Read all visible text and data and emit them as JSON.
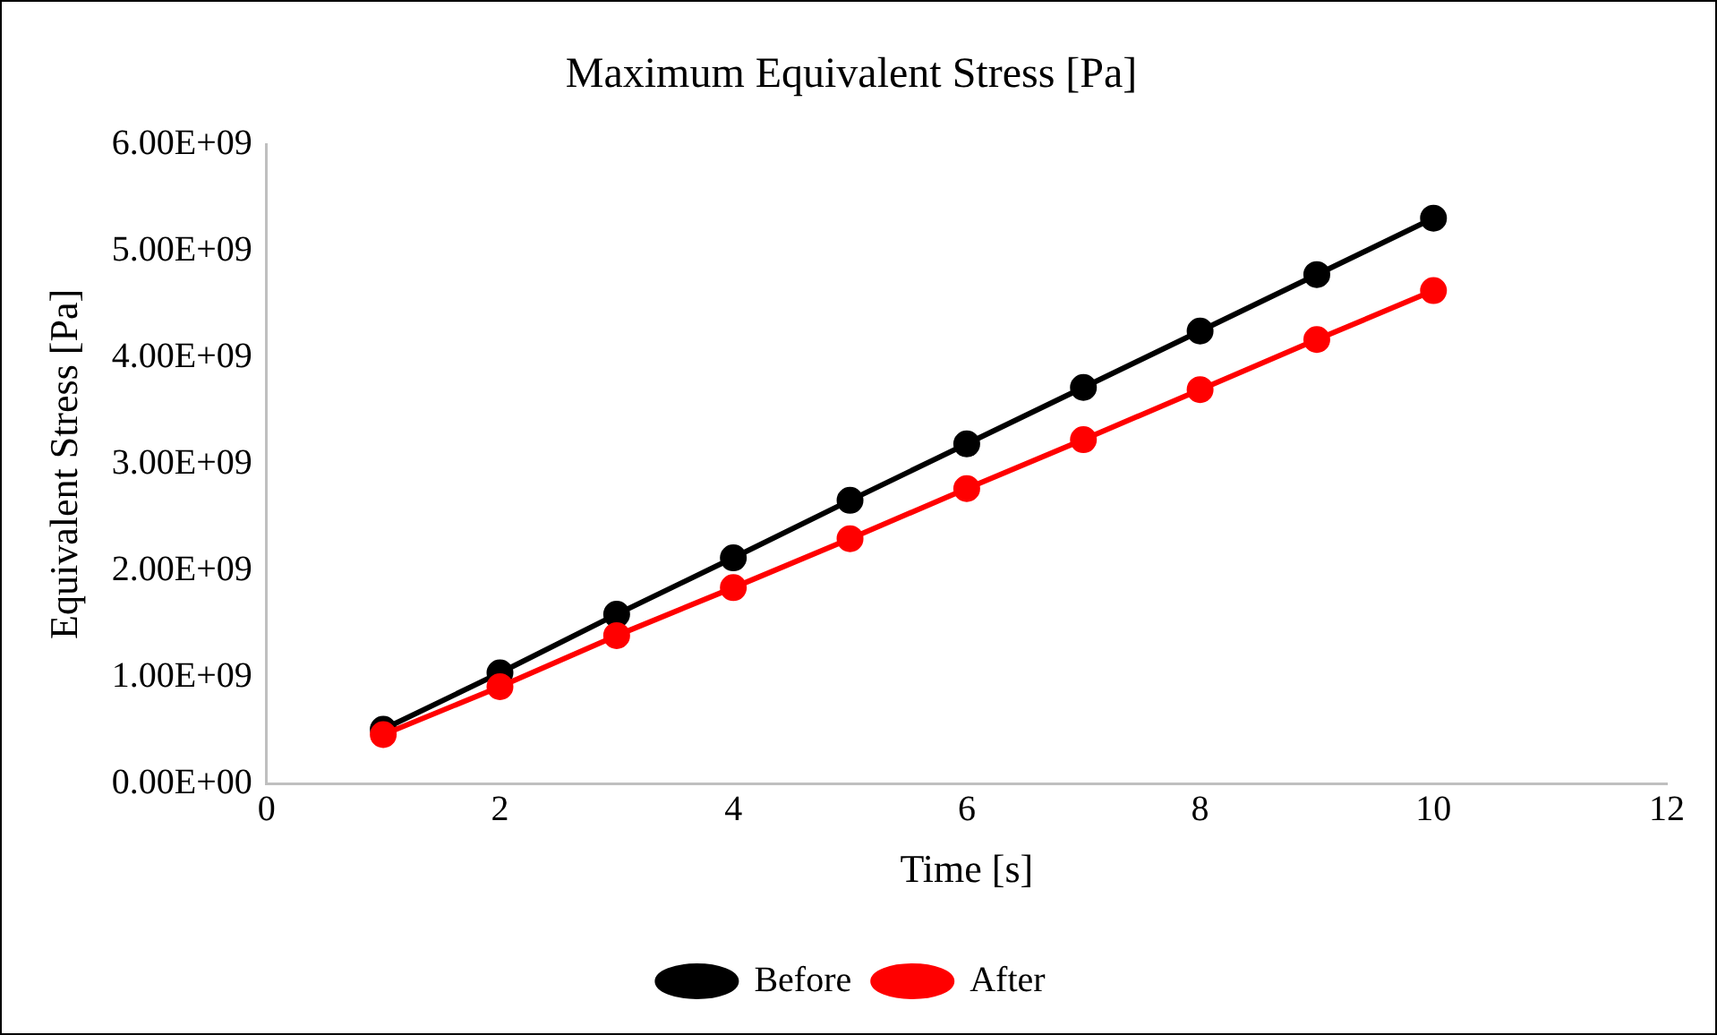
{
  "chart_data": {
    "type": "line",
    "title": "Maximum Equivalent Stress [Pa]",
    "xlabel": "Time [s]",
    "ylabel": "Equivalent Stress [Pa]",
    "x": [
      1,
      2,
      3,
      4,
      5,
      6,
      7,
      8,
      9,
      10
    ],
    "series": [
      {
        "name": "Before",
        "color": "#000000",
        "values": [
          510000000,
          1040000000,
          1590000000,
          2120000000,
          2660000000,
          3190000000,
          3720000000,
          4250000000,
          4780000000,
          5310000000
        ]
      },
      {
        "name": "After",
        "color": "#ff0000",
        "values": [
          460000000,
          910000000,
          1390000000,
          1840000000,
          2300000000,
          2770000000,
          3230000000,
          3700000000,
          4170000000,
          4630000000
        ]
      }
    ],
    "xlim": [
      0,
      12
    ],
    "xticks": [
      0,
      2,
      4,
      6,
      8,
      10,
      12
    ],
    "ylim": [
      0,
      6000000000
    ],
    "yticks": [
      {
        "value": 0,
        "label": "0.00E+00"
      },
      {
        "value": 1000000000,
        "label": "1.00E+09"
      },
      {
        "value": 2000000000,
        "label": "2.00E+09"
      },
      {
        "value": 3000000000,
        "label": "3.00E+09"
      },
      {
        "value": 4000000000,
        "label": "4.00E+09"
      },
      {
        "value": 5000000000,
        "label": "5.00E+09"
      },
      {
        "value": 6000000000,
        "label": "6.00E+09"
      }
    ],
    "grid": false,
    "legend": "bottom",
    "marker": "circle",
    "line_style": "solid"
  }
}
